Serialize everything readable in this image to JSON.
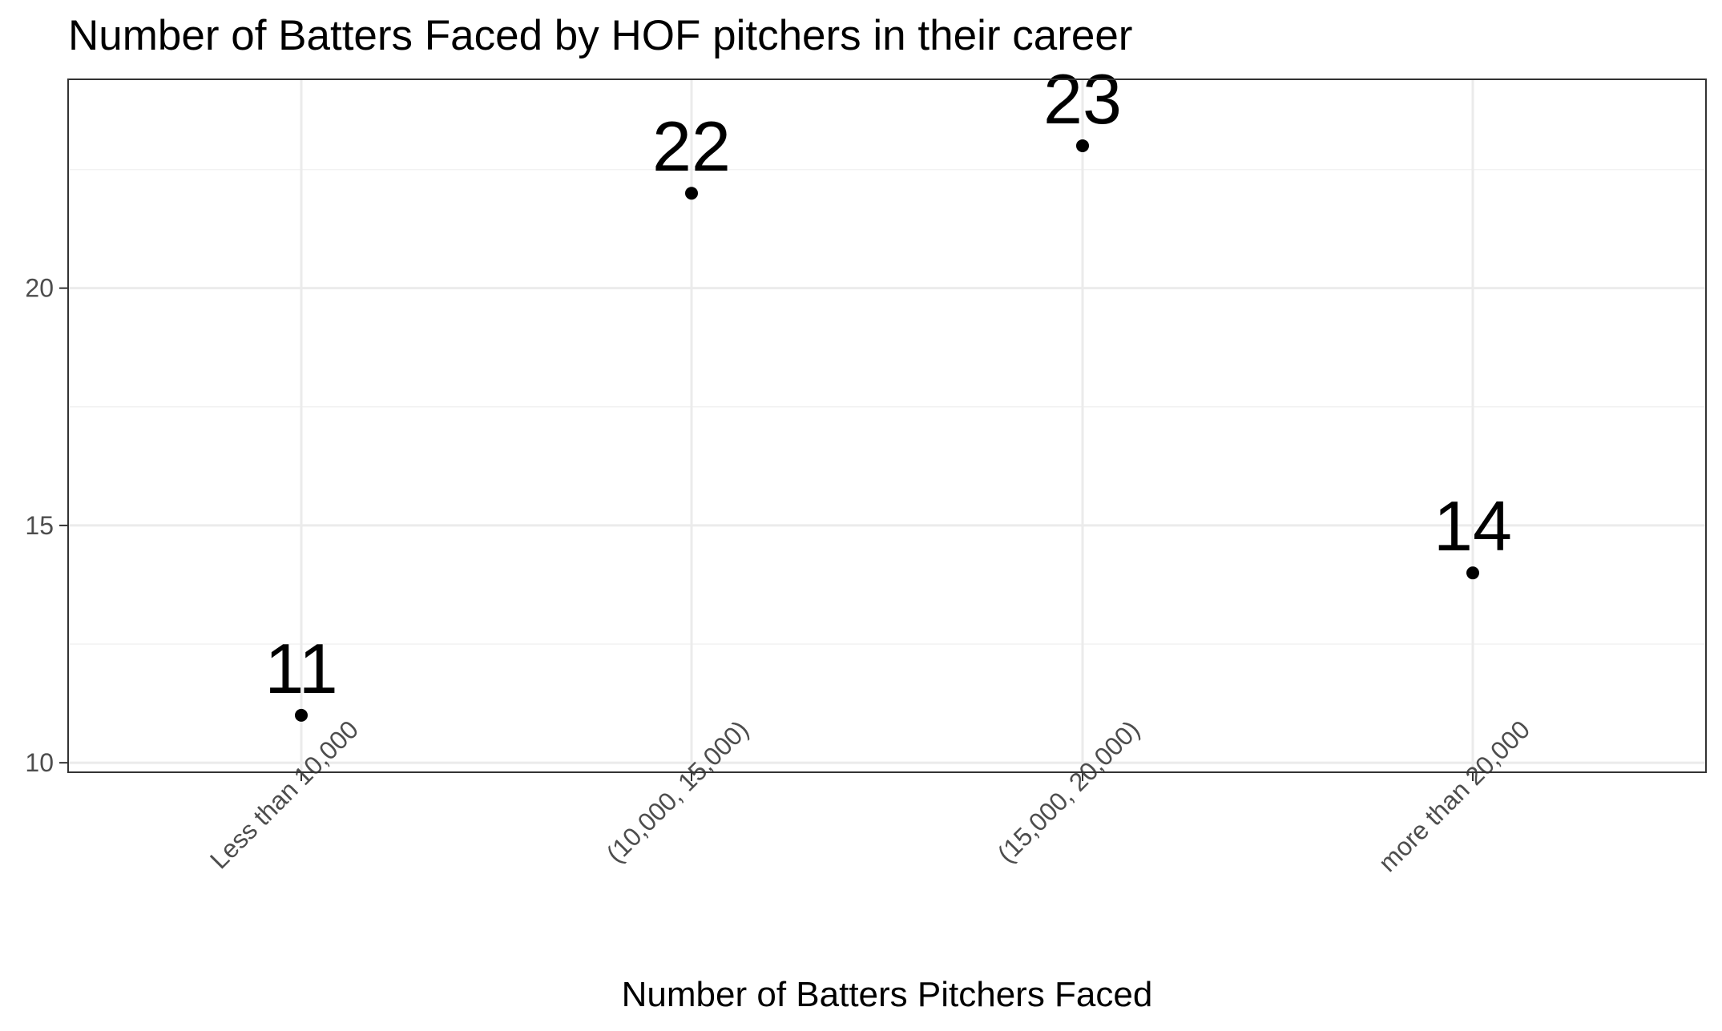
{
  "chart_data": {
    "type": "scatter",
    "title": "Number of Batters Faced by HOF pitchers in their career",
    "xlabel": "Number of Batters Pitchers Faced",
    "ylabel": "",
    "categories": [
      "Less than 10,000",
      "(10,000, 15,000)",
      "(15,000, 20,000)",
      "more than 20,000"
    ],
    "values": [
      11,
      22,
      23,
      14
    ],
    "data_labels": [
      "11",
      "22",
      "23",
      "14"
    ],
    "ylim": [
      9.8,
      24.4
    ],
    "y_ticks": [
      10,
      15,
      20
    ],
    "y_tick_labels": [
      "10",
      "15",
      "20"
    ],
    "y_minor_ticks": [
      12.5,
      17.5,
      22.5
    ],
    "grid": true,
    "legend": "none",
    "colors": {
      "point": "#000000",
      "grid_major": "#ebebeb",
      "grid_minor": "#f2f2f2",
      "panel_border": "#333333",
      "tick_text": "#4d4d4d",
      "text": "#000000"
    }
  }
}
